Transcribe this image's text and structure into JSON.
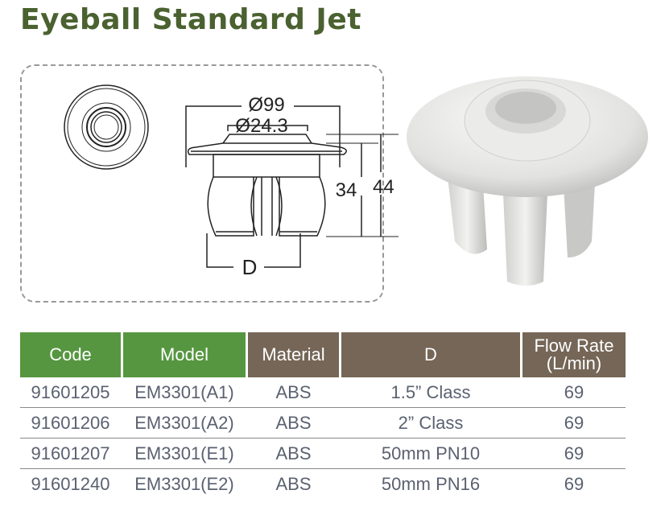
{
  "title": "Eyeball Standard Jet",
  "drawing": {
    "dim_outer": "Ø99",
    "dim_inner": "Ø24.3",
    "dim_height_body": "34",
    "dim_height_total": "44",
    "dim_d": "D"
  },
  "colors": {
    "title": "#4a6130",
    "header_green": "#569640",
    "header_brown": "#756657"
  },
  "table": {
    "headers": [
      "Code",
      "Model",
      "Material",
      "D",
      "Flow Rate\n(L/min)"
    ],
    "rows": [
      [
        "91601205",
        "EM3301(A1)",
        "ABS",
        "1.5” Class",
        "69"
      ],
      [
        "91601206",
        "EM3301(A2)",
        "ABS",
        "2” Class",
        "69"
      ],
      [
        "91601207",
        "EM3301(E1)",
        "ABS",
        "50mm PN10",
        "69"
      ],
      [
        "91601240",
        "EM3301(E2)",
        "ABS",
        "50mm PN16",
        "69"
      ]
    ]
  }
}
